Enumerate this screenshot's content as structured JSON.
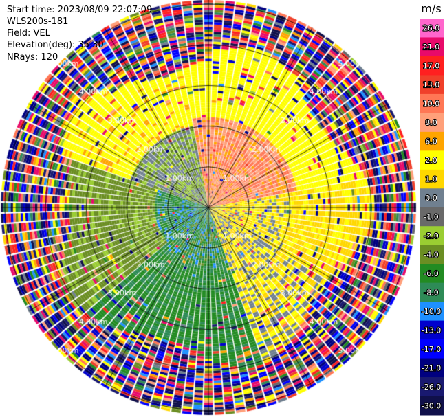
{
  "header": {
    "start_time": "Start time: 2023/08/09 22:07:09",
    "instrument": "WLS200s-181",
    "field": "Field: VEL",
    "elevation": "Elevation(deg): 35.30",
    "nrays": "NRays: 120"
  },
  "colorbar": {
    "unit": "m/s",
    "ticks": [
      "26.0",
      "21.0",
      "17.0",
      "13.0",
      "10.0",
      "8.0",
      "6.0",
      "2.0",
      "1.0",
      "0.0",
      "-1.0",
      "-2.0",
      "-4.0",
      "-6.0",
      "-8.0",
      "-10.0",
      "-13.0",
      "-17.0",
      "-21.0",
      "-26.0",
      "-30.0"
    ],
    "colors": [
      "#ff66cc",
      "#e80a6a",
      "#ff2020",
      "#f0402a",
      "#ff7755",
      "#ffa07a",
      "#ffa500",
      "#ffff00",
      "#ffd700",
      "#708090",
      "#696969",
      "#9acd32",
      "#6b8e23",
      "#228b22",
      "#2e8b57",
      "#1e90ff",
      "#0000cd",
      "#0000ff",
      "#000080",
      "#191970",
      "#10104a"
    ]
  },
  "chart_data": {
    "type": "ppi",
    "field": "VEL",
    "units": "m/s",
    "nrays": 120,
    "vmin": -30,
    "vmax": 26,
    "range_ring_labels": [
      "1.00km",
      "2.00km",
      "3.00km",
      "4.00km",
      "5.00km"
    ],
    "sectors": [
      {
        "region": "north-east, near to mid range",
        "velocity_m_s": [
          6,
          10
        ]
      },
      {
        "region": "north, mid range",
        "velocity_m_s": [
          2,
          6
        ]
      },
      {
        "region": "east, near range",
        "velocity_m_s": [
          -1,
          2
        ]
      },
      {
        "region": "west, near range",
        "velocity_m_s": [
          -4,
          -1
        ]
      },
      {
        "region": "south-west, near range",
        "velocity_m_s": [
          -10,
          -4
        ]
      },
      {
        "region": "south, mid range",
        "velocity_m_s": [
          -6,
          -4
        ]
      },
      {
        "region": "outer ring beyond about 4 km",
        "velocity_m_s": [
          -30,
          26
        ]
      }
    ]
  }
}
